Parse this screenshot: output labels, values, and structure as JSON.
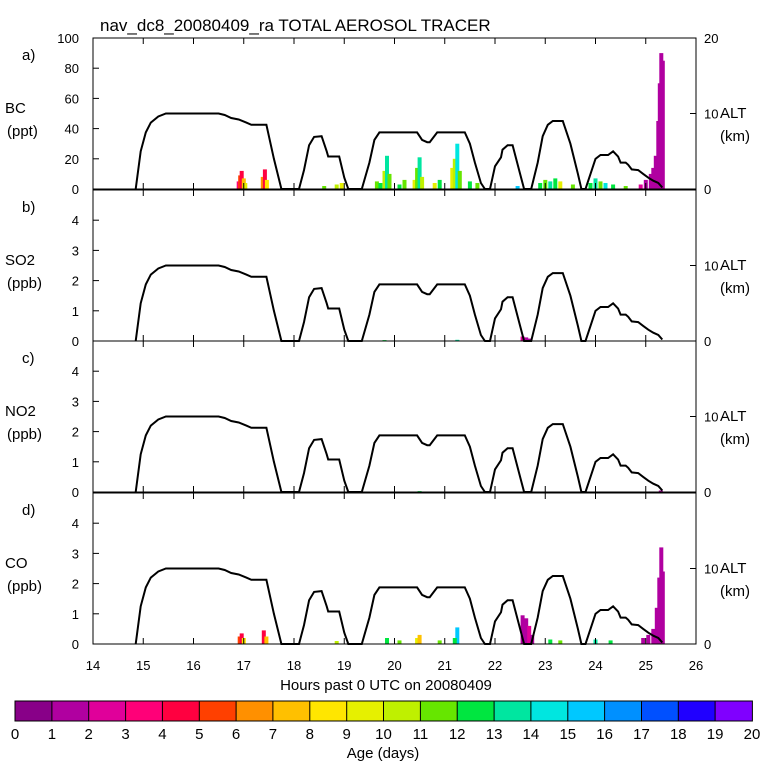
{
  "chart_data": {
    "type": "area",
    "title": "nav_dc8_20080409_ra TOTAL AEROSOL TRACER",
    "xlabel": "Hours past 0 UTC on 20080409",
    "xlim": [
      14,
      26
    ],
    "x_ticks": [
      "14",
      "15",
      "16",
      "17",
      "18",
      "19",
      "20",
      "21",
      "22",
      "23",
      "24",
      "25",
      "26"
    ],
    "flight_altitude_km": {
      "points": [
        [
          14.85,
          0
        ],
        [
          14.95,
          5
        ],
        [
          15.05,
          7.5
        ],
        [
          15.15,
          8.8
        ],
        [
          15.3,
          9.6
        ],
        [
          15.45,
          10
        ],
        [
          16.5,
          10
        ],
        [
          16.62,
          9.8
        ],
        [
          16.75,
          9.4
        ],
        [
          16.9,
          9.2
        ],
        [
          17.05,
          8.8
        ],
        [
          17.15,
          8.5
        ],
        [
          17.45,
          8.5
        ],
        [
          17.6,
          4
        ],
        [
          17.75,
          0
        ],
        [
          18.1,
          0
        ],
        [
          18.2,
          2.5
        ],
        [
          18.3,
          5.8
        ],
        [
          18.4,
          6.9
        ],
        [
          18.55,
          7
        ],
        [
          18.65,
          5
        ],
        [
          18.68,
          4.3
        ],
        [
          18.9,
          4.3
        ],
        [
          19.0,
          1.5
        ],
        [
          19.08,
          0
        ],
        [
          19.35,
          0
        ],
        [
          19.5,
          3.5
        ],
        [
          19.6,
          6.5
        ],
        [
          19.7,
          7.5
        ],
        [
          20.45,
          7.5
        ],
        [
          20.55,
          6.5
        ],
        [
          20.65,
          6.2
        ],
        [
          20.7,
          6.2
        ],
        [
          20.85,
          7.5
        ],
        [
          21.4,
          7.5
        ],
        [
          21.5,
          6
        ],
        [
          21.6,
          3.5
        ],
        [
          21.72,
          0.8
        ],
        [
          21.8,
          0
        ],
        [
          21.9,
          0
        ],
        [
          21.95,
          1.5
        ],
        [
          22.0,
          3
        ],
        [
          22.12,
          4.2
        ],
        [
          22.15,
          5.2
        ],
        [
          22.25,
          5.8
        ],
        [
          22.35,
          5.8
        ],
        [
          22.5,
          2
        ],
        [
          22.58,
          0
        ],
        [
          22.72,
          0
        ],
        [
          22.85,
          3.5
        ],
        [
          22.95,
          7
        ],
        [
          23.05,
          8.5
        ],
        [
          23.15,
          9
        ],
        [
          23.35,
          9
        ],
        [
          23.5,
          6
        ],
        [
          23.65,
          2
        ],
        [
          23.72,
          0
        ],
        [
          23.8,
          0
        ],
        [
          23.9,
          2
        ],
        [
          24.0,
          4
        ],
        [
          24.1,
          4.5
        ],
        [
          24.25,
          4.5
        ],
        [
          24.35,
          5
        ],
        [
          24.45,
          4.3
        ],
        [
          24.5,
          3.5
        ],
        [
          24.6,
          3.5
        ],
        [
          24.65,
          3.2
        ],
        [
          24.72,
          2.6
        ],
        [
          24.85,
          2.5
        ],
        [
          24.95,
          2
        ],
        [
          25.05,
          1.5
        ],
        [
          25.15,
          1.1
        ],
        [
          25.25,
          0.8
        ],
        [
          25.33,
          0.2
        ]
      ],
      "ylim": [
        0,
        20
      ],
      "ticks": [
        "0",
        "10",
        "20"
      ]
    },
    "panels": [
      {
        "letter": "a)",
        "species": "BC",
        "units": "(ppt)",
        "ylim": [
          0,
          100
        ],
        "y_ticks": [
          "0",
          "20",
          "40",
          "60",
          "80",
          "100"
        ],
        "alt_ticks": [
          "0",
          "10",
          "20"
        ],
        "alt_label": "ALT",
        "alt_units": "(km)",
        "bars": [
          {
            "x": 16.9,
            "value": 5,
            "age": 3
          },
          {
            "x": 16.93,
            "value": 9,
            "age": 5
          },
          {
            "x": 16.96,
            "value": 12,
            "age": 4
          },
          {
            "x": 17.0,
            "value": 7,
            "age": 7
          },
          {
            "x": 17.03,
            "value": 4,
            "age": 9
          },
          {
            "x": 17.38,
            "value": 8,
            "age": 6
          },
          {
            "x": 17.42,
            "value": 13,
            "age": 4
          },
          {
            "x": 17.46,
            "value": 6,
            "age": 8
          },
          {
            "x": 18.6,
            "value": 2,
            "age": 11
          },
          {
            "x": 18.85,
            "value": 3,
            "age": 10
          },
          {
            "x": 18.95,
            "value": 4,
            "age": 9
          },
          {
            "x": 19.65,
            "value": 5,
            "age": 11
          },
          {
            "x": 19.72,
            "value": 4,
            "age": 12
          },
          {
            "x": 19.8,
            "value": 12,
            "age": 10
          },
          {
            "x": 19.85,
            "value": 22,
            "age": 13
          },
          {
            "x": 19.9,
            "value": 10,
            "age": 11
          },
          {
            "x": 20.1,
            "value": 3,
            "age": 12
          },
          {
            "x": 20.2,
            "value": 6,
            "age": 11
          },
          {
            "x": 20.4,
            "value": 6,
            "age": 9
          },
          {
            "x": 20.45,
            "value": 14,
            "age": 11
          },
          {
            "x": 20.5,
            "value": 21,
            "age": 13
          },
          {
            "x": 20.55,
            "value": 8,
            "age": 10
          },
          {
            "x": 20.8,
            "value": 4,
            "age": 9
          },
          {
            "x": 20.9,
            "value": 6,
            "age": 12
          },
          {
            "x": 21.15,
            "value": 14,
            "age": 9
          },
          {
            "x": 21.2,
            "value": 20,
            "age": 10
          },
          {
            "x": 21.25,
            "value": 30,
            "age": 14
          },
          {
            "x": 21.3,
            "value": 12,
            "age": 11
          },
          {
            "x": 21.5,
            "value": 5,
            "age": 12
          },
          {
            "x": 21.65,
            "value": 4,
            "age": 11
          },
          {
            "x": 22.45,
            "value": 2,
            "age": 15
          },
          {
            "x": 22.9,
            "value": 4,
            "age": 12
          },
          {
            "x": 23.0,
            "value": 6,
            "age": 11
          },
          {
            "x": 23.1,
            "value": 5,
            "age": 13
          },
          {
            "x": 23.2,
            "value": 7,
            "age": 12
          },
          {
            "x": 23.3,
            "value": 5,
            "age": 9
          },
          {
            "x": 23.55,
            "value": 3,
            "age": 11
          },
          {
            "x": 23.9,
            "value": 4,
            "age": 12
          },
          {
            "x": 24.0,
            "value": 7,
            "age": 13
          },
          {
            "x": 24.1,
            "value": 5,
            "age": 11
          },
          {
            "x": 24.2,
            "value": 4,
            "age": 14
          },
          {
            "x": 24.35,
            "value": 3,
            "age": 12
          },
          {
            "x": 24.6,
            "value": 2,
            "age": 11
          },
          {
            "x": 24.9,
            "value": 3,
            "age": 2
          },
          {
            "x": 25.0,
            "value": 6,
            "age": 1
          },
          {
            "x": 25.1,
            "value": 10,
            "age": 1
          },
          {
            "x": 25.15,
            "value": 14,
            "age": 1
          },
          {
            "x": 25.2,
            "value": 22,
            "age": 1
          },
          {
            "x": 25.25,
            "value": 45,
            "age": 1
          },
          {
            "x": 25.28,
            "value": 70,
            "age": 1
          },
          {
            "x": 25.31,
            "value": 90,
            "age": 1
          },
          {
            "x": 25.34,
            "value": 85,
            "age": 1
          }
        ]
      },
      {
        "letter": "b)",
        "species": "SO2",
        "units": "(ppb)",
        "ylim": [
          0,
          5
        ],
        "y_ticks": [
          "0",
          "1",
          "2",
          "3",
          "4"
        ],
        "alt_ticks": [
          "0",
          "10"
        ],
        "alt_label": "ALT",
        "alt_units": "(km)",
        "bars": [
          {
            "x": 19.8,
            "value": 0.03,
            "age": 12
          },
          {
            "x": 21.25,
            "value": 0.04,
            "age": 13
          },
          {
            "x": 22.55,
            "value": 0.15,
            "age": 2
          },
          {
            "x": 22.62,
            "value": 0.12,
            "age": 1
          },
          {
            "x": 22.68,
            "value": 0.08,
            "age": 1
          }
        ]
      },
      {
        "letter": "c)",
        "species": "NO2",
        "units": "(ppb)",
        "ylim": [
          0,
          5
        ],
        "y_ticks": [
          "0",
          "1",
          "2",
          "3",
          "4"
        ],
        "alt_ticks": [
          "0",
          "10"
        ],
        "alt_label": "ALT",
        "alt_units": "(km)",
        "bars": [
          {
            "x": 20.5,
            "value": 0.03,
            "age": 12
          },
          {
            "x": 25.3,
            "value": 0.05,
            "age": 1
          }
        ]
      },
      {
        "letter": "d)",
        "species": "CO",
        "units": "(ppb)",
        "ylim": [
          0,
          5
        ],
        "y_ticks": [
          "0",
          "1",
          "2",
          "3",
          "4"
        ],
        "alt_ticks": [
          "0",
          "10"
        ],
        "alt_label": "ALT",
        "alt_units": "(km)",
        "bars": [
          {
            "x": 16.92,
            "value": 0.25,
            "age": 5
          },
          {
            "x": 16.96,
            "value": 0.35,
            "age": 4
          },
          {
            "x": 17.0,
            "value": 0.2,
            "age": 8
          },
          {
            "x": 17.4,
            "value": 0.45,
            "age": 4
          },
          {
            "x": 17.45,
            "value": 0.25,
            "age": 7
          },
          {
            "x": 18.85,
            "value": 0.1,
            "age": 10
          },
          {
            "x": 19.85,
            "value": 0.2,
            "age": 12
          },
          {
            "x": 20.1,
            "value": 0.12,
            "age": 11
          },
          {
            "x": 20.45,
            "value": 0.2,
            "age": 9
          },
          {
            "x": 20.5,
            "value": 0.3,
            "age": 7
          },
          {
            "x": 20.9,
            "value": 0.12,
            "age": 11
          },
          {
            "x": 21.25,
            "value": 0.55,
            "age": 15
          },
          {
            "x": 21.2,
            "value": 0.2,
            "age": 12
          },
          {
            "x": 22.55,
            "value": 0.95,
            "age": 1
          },
          {
            "x": 22.62,
            "value": 0.85,
            "age": 1
          },
          {
            "x": 22.68,
            "value": 0.6,
            "age": 2
          },
          {
            "x": 22.74,
            "value": 0.3,
            "age": 1
          },
          {
            "x": 23.1,
            "value": 0.15,
            "age": 12
          },
          {
            "x": 23.3,
            "value": 0.12,
            "age": 11
          },
          {
            "x": 24.0,
            "value": 0.15,
            "age": 13
          },
          {
            "x": 24.3,
            "value": 0.12,
            "age": 12
          },
          {
            "x": 24.95,
            "value": 0.2,
            "age": 1
          },
          {
            "x": 25.05,
            "value": 0.3,
            "age": 1
          },
          {
            "x": 25.15,
            "value": 0.5,
            "age": 1
          },
          {
            "x": 25.22,
            "value": 1.2,
            "age": 1
          },
          {
            "x": 25.27,
            "value": 2.2,
            "age": 1
          },
          {
            "x": 25.31,
            "value": 3.2,
            "age": 1
          },
          {
            "x": 25.34,
            "value": 2.4,
            "age": 1
          }
        ]
      }
    ],
    "colorbar": {
      "label": "Age (days)",
      "ticks": [
        "0",
        "1",
        "2",
        "3",
        "4",
        "5",
        "6",
        "7",
        "8",
        "9",
        "10",
        "11",
        "12",
        "13",
        "14",
        "15",
        "16",
        "17",
        "18",
        "19",
        "20"
      ],
      "colors": [
        "#880088",
        "#b000a0",
        "#e0009a",
        "#ff0078",
        "#ff0040",
        "#ff4000",
        "#ff9000",
        "#ffc000",
        "#ffe600",
        "#e6f000",
        "#bff000",
        "#66e600",
        "#00e640",
        "#00e6a0",
        "#00e6e0",
        "#00c8ff",
        "#0090ff",
        "#0050ff",
        "#2000ff",
        "#8000ff"
      ]
    }
  }
}
